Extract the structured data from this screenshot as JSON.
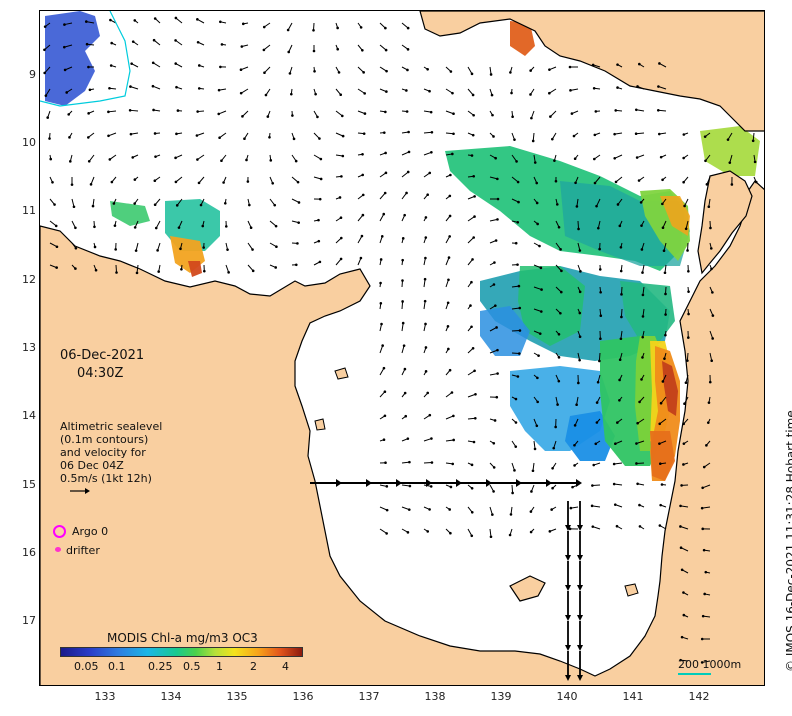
{
  "map": {
    "lat_ticks": [
      "9",
      "10",
      "11",
      "12",
      "13",
      "14",
      "15",
      "16",
      "17"
    ],
    "lon_ticks": [
      "133",
      "134",
      "135",
      "136",
      "137",
      "138",
      "139",
      "140",
      "141",
      "142"
    ],
    "extent": {
      "lon_min": 132.0,
      "lon_max": 143.0,
      "lat_north": 8.05,
      "lat_south": 17.95
    },
    "colors": {
      "land": "#f9cfa0",
      "water": "#ffffff",
      "coast": "#000000",
      "arrows": "#000000"
    }
  },
  "date_line": "06-Dec-2021",
  "time_line": "04:30Z",
  "legend": {
    "lines": [
      "Altimetric sealevel",
      "(0.1m contours)",
      "and velocity for",
      "06 Dec 04Z",
      "0.5m/s (1kt 12h)"
    ],
    "argo_label": "Argo 0",
    "drifter_label": "drifter"
  },
  "colorbar": {
    "title": "MODIS Chl-a mg/m3 OC3",
    "ticks": [
      "0.05",
      "0.1",
      "0.25",
      "0.5",
      "1",
      "2",
      "4"
    ]
  },
  "scale_label": "200  1000m",
  "credit": "© IMOS 16-Dec-2021 11:31:28 Hobart time"
}
